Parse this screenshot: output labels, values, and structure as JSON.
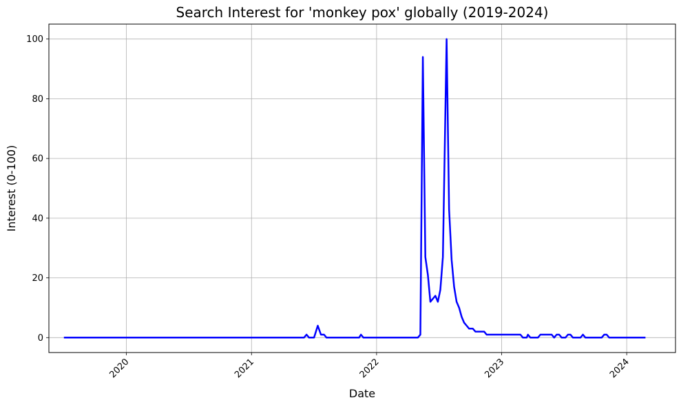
{
  "chart_data": {
    "type": "line",
    "title": "Search Interest for 'monkey pox' globally (2019-2024)",
    "xlabel": "Date",
    "ylabel": "Interest (0-100)",
    "grid": true,
    "x_ticks": [
      "2020",
      "2021",
      "2022",
      "2023",
      "2024"
    ],
    "y_ticks": [
      0,
      20,
      40,
      60,
      80,
      100
    ],
    "xlim": [
      2019.38,
      2024.39
    ],
    "ylim": [
      -5,
      105
    ],
    "series": [
      {
        "name": "monkey pox",
        "color": "#0000ff",
        "points": [
          [
            2019.5,
            0
          ],
          [
            2021.42,
            0
          ],
          [
            2021.44,
            1
          ],
          [
            2021.46,
            0
          ],
          [
            2021.5,
            0
          ],
          [
            2021.53,
            4
          ],
          [
            2021.555,
            1
          ],
          [
            2021.58,
            1
          ],
          [
            2021.6,
            0
          ],
          [
            2021.86,
            0
          ],
          [
            2021.875,
            1
          ],
          [
            2021.895,
            0
          ],
          [
            2022.3,
            0
          ],
          [
            2022.33,
            0
          ],
          [
            2022.35,
            1
          ],
          [
            2022.37,
            94
          ],
          [
            2022.39,
            27
          ],
          [
            2022.41,
            21
          ],
          [
            2022.43,
            12
          ],
          [
            2022.45,
            13
          ],
          [
            2022.47,
            14
          ],
          [
            2022.49,
            12
          ],
          [
            2022.51,
            16
          ],
          [
            2022.53,
            27
          ],
          [
            2022.56,
            100
          ],
          [
            2022.58,
            43
          ],
          [
            2022.6,
            26
          ],
          [
            2022.62,
            17
          ],
          [
            2022.64,
            12
          ],
          [
            2022.66,
            10
          ],
          [
            2022.68,
            7
          ],
          [
            2022.7,
            5
          ],
          [
            2022.72,
            4
          ],
          [
            2022.74,
            3
          ],
          [
            2022.77,
            3
          ],
          [
            2022.79,
            2
          ],
          [
            2022.86,
            2
          ],
          [
            2022.88,
            1
          ],
          [
            2023.15,
            1
          ],
          [
            2023.17,
            0
          ],
          [
            2023.2,
            0
          ],
          [
            2023.21,
            1
          ],
          [
            2023.23,
            0
          ],
          [
            2023.29,
            0
          ],
          [
            2023.31,
            1
          ],
          [
            2023.4,
            1
          ],
          [
            2023.42,
            0
          ],
          [
            2023.44,
            1
          ],
          [
            2023.46,
            1
          ],
          [
            2023.48,
            0
          ],
          [
            2023.51,
            0
          ],
          [
            2023.53,
            1
          ],
          [
            2023.55,
            1
          ],
          [
            2023.57,
            0
          ],
          [
            2023.63,
            0
          ],
          [
            2023.65,
            1
          ],
          [
            2023.67,
            0
          ],
          [
            2023.8,
            0
          ],
          [
            2023.82,
            1
          ],
          [
            2023.84,
            1
          ],
          [
            2023.86,
            0
          ],
          [
            2024.15,
            0
          ]
        ]
      }
    ]
  }
}
